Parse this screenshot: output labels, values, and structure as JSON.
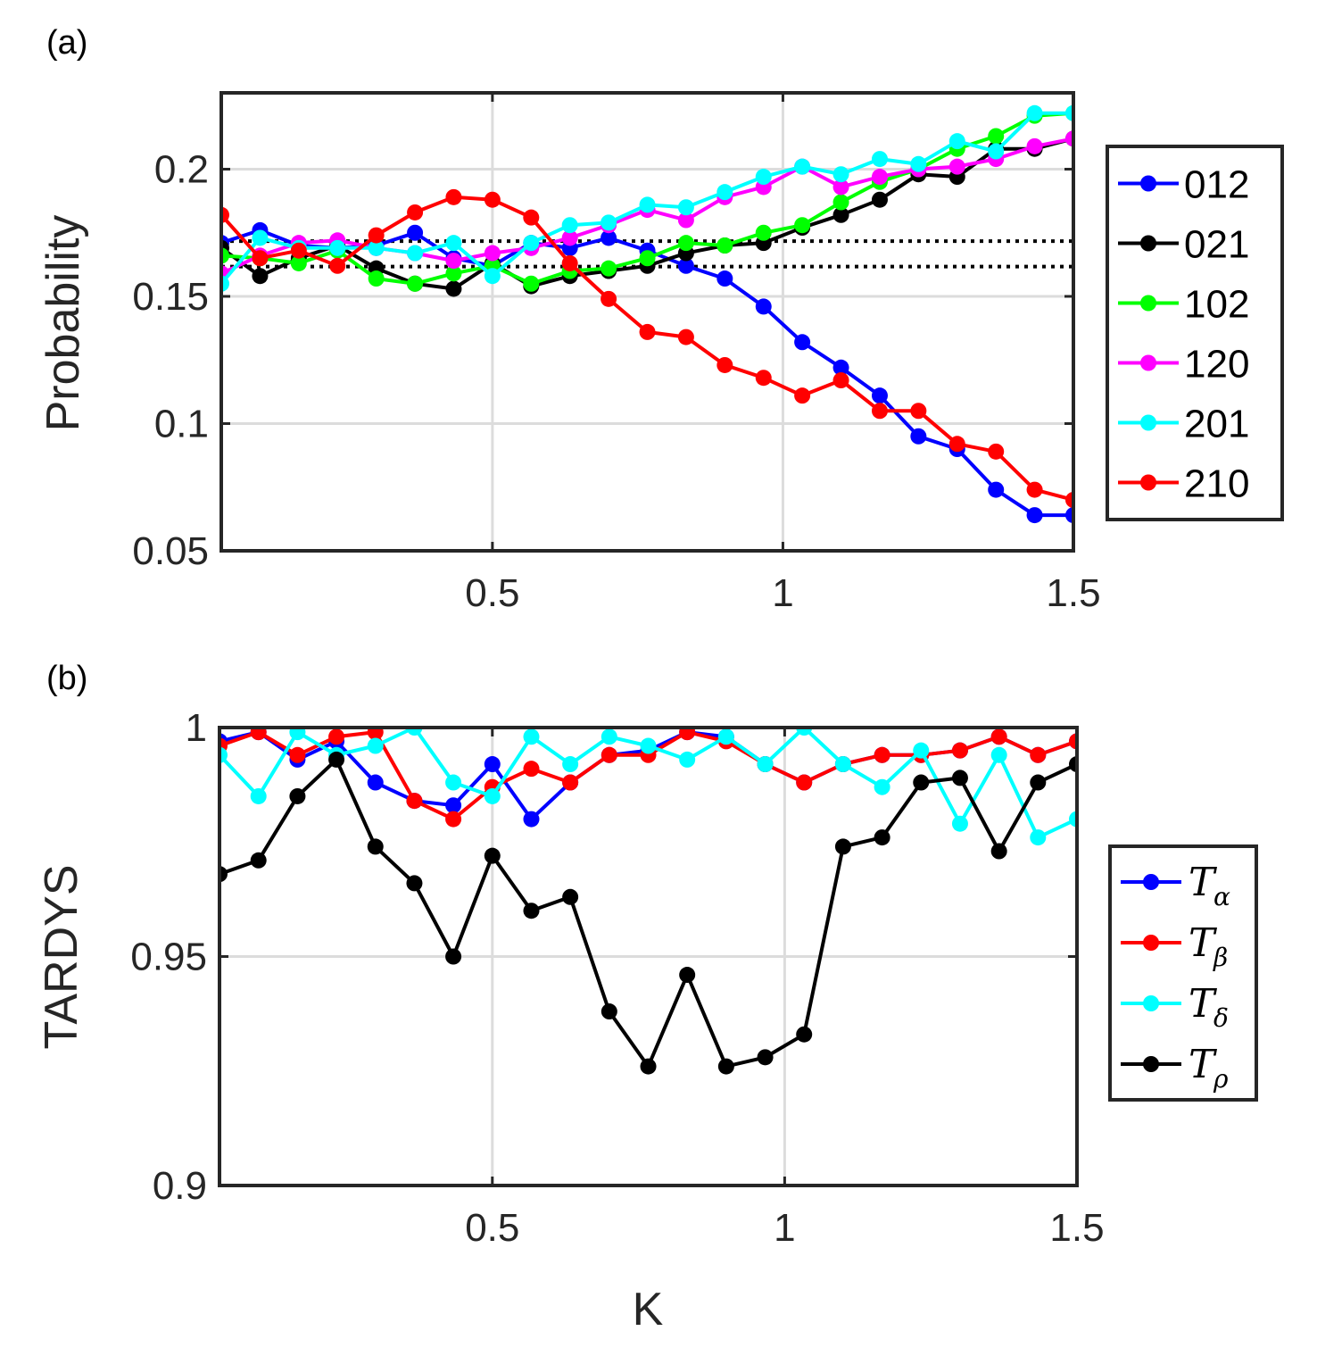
{
  "chart_data": [
    {
      "type": "line",
      "panel_label": "(a)",
      "xlabel": "",
      "ylabel": "Probability",
      "xlim": [
        0.0333,
        1.5
      ],
      "ylim": [
        0.05,
        0.23
      ],
      "xticks": [
        0.5,
        1,
        1.5
      ],
      "xtick_labels": [
        "0.5",
        "1",
        "1.5"
      ],
      "yticks": [
        0.05,
        0.1,
        0.15,
        0.2
      ],
      "ytick_labels": [
        "0.05",
        "0.1",
        "0.15",
        "0.2"
      ],
      "grid": true,
      "legend_position": "outside-right",
      "x": [
        0.0333,
        0.1,
        0.1667,
        0.2333,
        0.3,
        0.3667,
        0.4333,
        0.5,
        0.5667,
        0.6333,
        0.7,
        0.7667,
        0.8333,
        0.9,
        0.9667,
        1.0333,
        1.1,
        1.1667,
        1.2333,
        1.3,
        1.3667,
        1.4333,
        1.5
      ],
      "reference_lines": [
        0.1617,
        0.1717
      ],
      "series": [
        {
          "name": "012",
          "color": "#0000ff",
          "values": [
            0.171,
            0.176,
            0.17,
            0.169,
            0.17,
            0.175,
            0.165,
            0.162,
            0.171,
            0.169,
            0.173,
            0.168,
            0.162,
            0.157,
            0.146,
            0.132,
            0.122,
            0.111,
            0.095,
            0.09,
            0.074,
            0.064,
            0.064
          ]
        },
        {
          "name": "021",
          "color": "#000000",
          "values": [
            0.169,
            0.158,
            0.165,
            0.17,
            0.161,
            0.155,
            0.153,
            0.163,
            0.154,
            0.158,
            0.16,
            0.162,
            0.167,
            0.17,
            0.171,
            0.177,
            0.182,
            0.188,
            0.198,
            0.197,
            0.208,
            0.208,
            0.212
          ]
        },
        {
          "name": "102",
          "color": "#00ff00",
          "values": [
            0.166,
            0.165,
            0.163,
            0.168,
            0.157,
            0.155,
            0.159,
            0.162,
            0.155,
            0.16,
            0.161,
            0.165,
            0.171,
            0.17,
            0.175,
            0.178,
            0.187,
            0.195,
            0.2,
            0.208,
            0.213,
            0.221,
            0.222
          ]
        },
        {
          "name": "120",
          "color": "#ff00ff",
          "values": [
            0.159,
            0.166,
            0.171,
            0.172,
            0.169,
            0.167,
            0.164,
            0.167,
            0.169,
            0.173,
            0.178,
            0.184,
            0.18,
            0.189,
            0.193,
            0.201,
            0.193,
            0.197,
            0.2,
            0.201,
            0.204,
            0.209,
            0.212
          ]
        },
        {
          "name": "201",
          "color": "#00ffff",
          "values": [
            0.155,
            0.173,
            0.169,
            0.169,
            0.169,
            0.167,
            0.171,
            0.158,
            0.171,
            0.178,
            0.179,
            0.186,
            0.185,
            0.191,
            0.197,
            0.201,
            0.198,
            0.204,
            0.202,
            0.211,
            0.207,
            0.222,
            0.222
          ]
        },
        {
          "name": "210",
          "color": "#ff0000",
          "values": [
            0.182,
            0.165,
            0.168,
            0.162,
            0.174,
            0.183,
            0.189,
            0.188,
            0.181,
            0.163,
            0.149,
            0.136,
            0.134,
            0.123,
            0.118,
            0.111,
            0.117,
            0.105,
            0.105,
            0.092,
            0.089,
            0.074,
            0.07
          ]
        }
      ]
    },
    {
      "type": "line",
      "panel_label": "(b)",
      "xlabel": "K",
      "ylabel": "TARDYS",
      "xlim": [
        0.0333,
        1.5
      ],
      "ylim": [
        0.9,
        1.0
      ],
      "xticks": [
        0.5,
        1,
        1.5
      ],
      "xtick_labels": [
        "0.5",
        "1",
        "1.5"
      ],
      "yticks": [
        0.9,
        0.95,
        1.0
      ],
      "ytick_labels": [
        "0.9",
        "0.95",
        "1"
      ],
      "grid": true,
      "legend_position": "outside-right",
      "x": [
        0.0333,
        0.1,
        0.1667,
        0.2333,
        0.3,
        0.3667,
        0.4333,
        0.5,
        0.5667,
        0.6333,
        0.7,
        0.7667,
        0.8333,
        0.9,
        0.9667,
        1.0333,
        1.1,
        1.1667,
        1.2333,
        1.3,
        1.3667,
        1.4333,
        1.5
      ],
      "series": [
        {
          "name": "T",
          "subscript": "α",
          "color": "#0000ff",
          "values": [
            0.997,
            0.999,
            0.993,
            0.997,
            0.988,
            0.984,
            0.983,
            0.992,
            0.98,
            0.988,
            0.994,
            0.995,
            0.999,
            0.998,
            0.992,
            0.988,
            0.992,
            0.994,
            0.994,
            0.995,
            0.998,
            0.994,
            0.997
          ]
        },
        {
          "name": "T",
          "subscript": "β",
          "color": "#ff0000",
          "values": [
            0.996,
            0.999,
            0.994,
            0.998,
            0.999,
            0.984,
            0.98,
            0.987,
            0.991,
            0.988,
            0.994,
            0.994,
            0.999,
            0.997,
            0.992,
            0.988,
            0.992,
            0.994,
            0.994,
            0.995,
            0.998,
            0.994,
            0.997
          ]
        },
        {
          "name": "T",
          "subscript": "δ",
          "color": "#00ffff",
          "values": [
            0.994,
            0.985,
            0.999,
            0.994,
            0.996,
            1.0,
            0.988,
            0.985,
            0.998,
            0.992,
            0.998,
            0.996,
            0.993,
            0.998,
            0.992,
            1.0,
            0.992,
            0.987,
            0.995,
            0.979,
            0.994,
            0.976,
            0.98
          ]
        },
        {
          "name": "T",
          "subscript": "ρ",
          "color": "#000000",
          "values": [
            0.968,
            0.971,
            0.985,
            0.993,
            0.974,
            0.966,
            0.95,
            0.972,
            0.96,
            0.963,
            0.938,
            0.926,
            0.946,
            0.926,
            0.928,
            0.933,
            0.974,
            0.976,
            0.988,
            0.989,
            0.973,
            0.988,
            0.992
          ]
        }
      ]
    }
  ]
}
